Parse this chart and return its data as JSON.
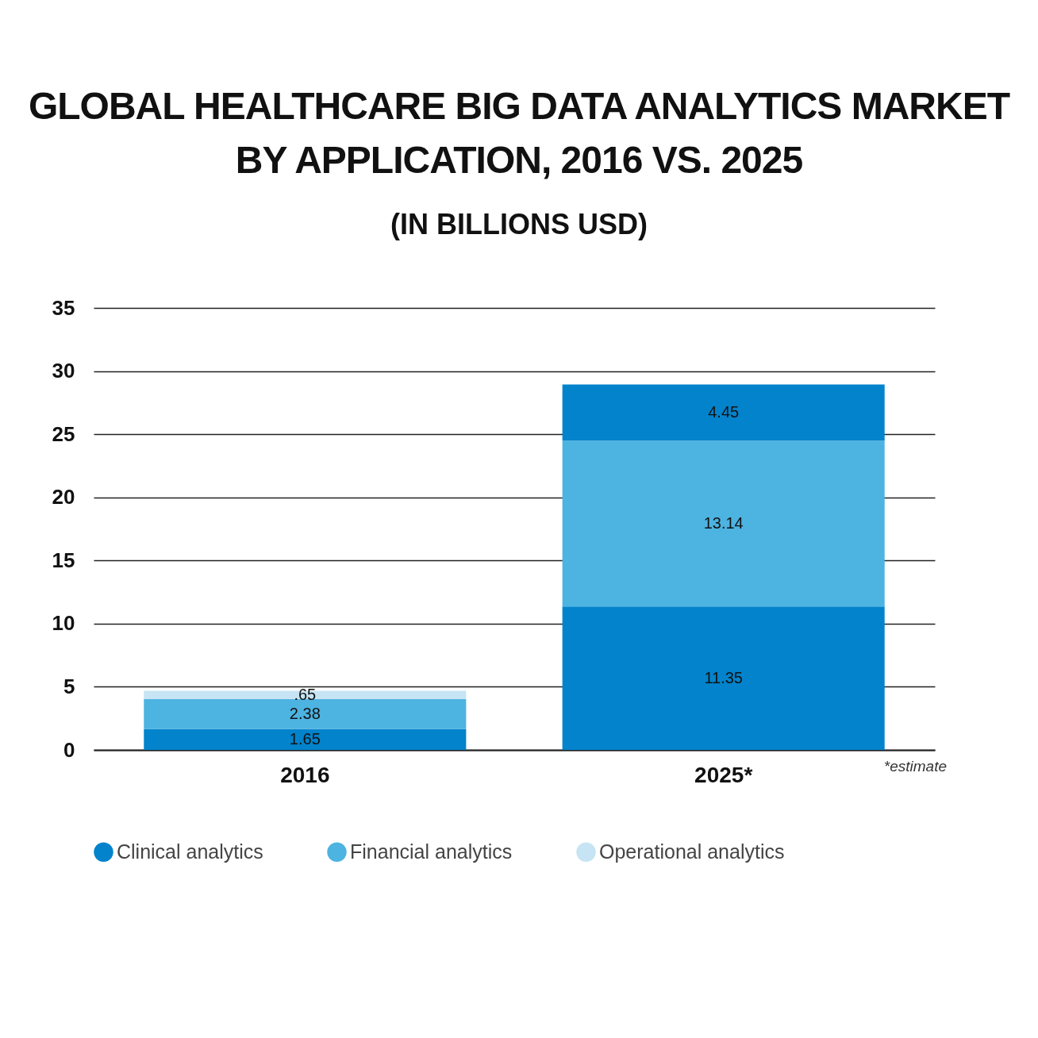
{
  "chart_data": {
    "type": "bar",
    "title": "GLOBAL HEALTHCARE BIG DATA ANALYTICS MARKET BY APPLICATION, 2016 VS. 2025",
    "subtitle": "(IN BILLIONS USD)",
    "categories": [
      "2016",
      "2025*"
    ],
    "stacked": true,
    "series": [
      {
        "name": "Clinical analytics",
        "color": "#0283cc",
        "values": [
          1.65,
          11.35
        ],
        "value_labels": [
          "1.65",
          "11.35"
        ]
      },
      {
        "name": "Financial analytics",
        "color": "#4db3e1",
        "values": [
          2.38,
          13.14
        ],
        "value_labels": [
          "2.38",
          "13.14"
        ]
      },
      {
        "name": "Operational analytics",
        "color": "#c6e4f4",
        "colors": [
          "#c6e4f4",
          "#0283cc"
        ],
        "values": [
          0.65,
          4.45
        ],
        "value_labels": [
          ".65",
          "4.45"
        ]
      }
    ],
    "ylim": [
      0,
      35
    ],
    "yticks": [
      0,
      5,
      10,
      15,
      20,
      25,
      30,
      35
    ],
    "grid": "y",
    "legend": "bottom",
    "annotations": [
      "*estimate"
    ]
  }
}
